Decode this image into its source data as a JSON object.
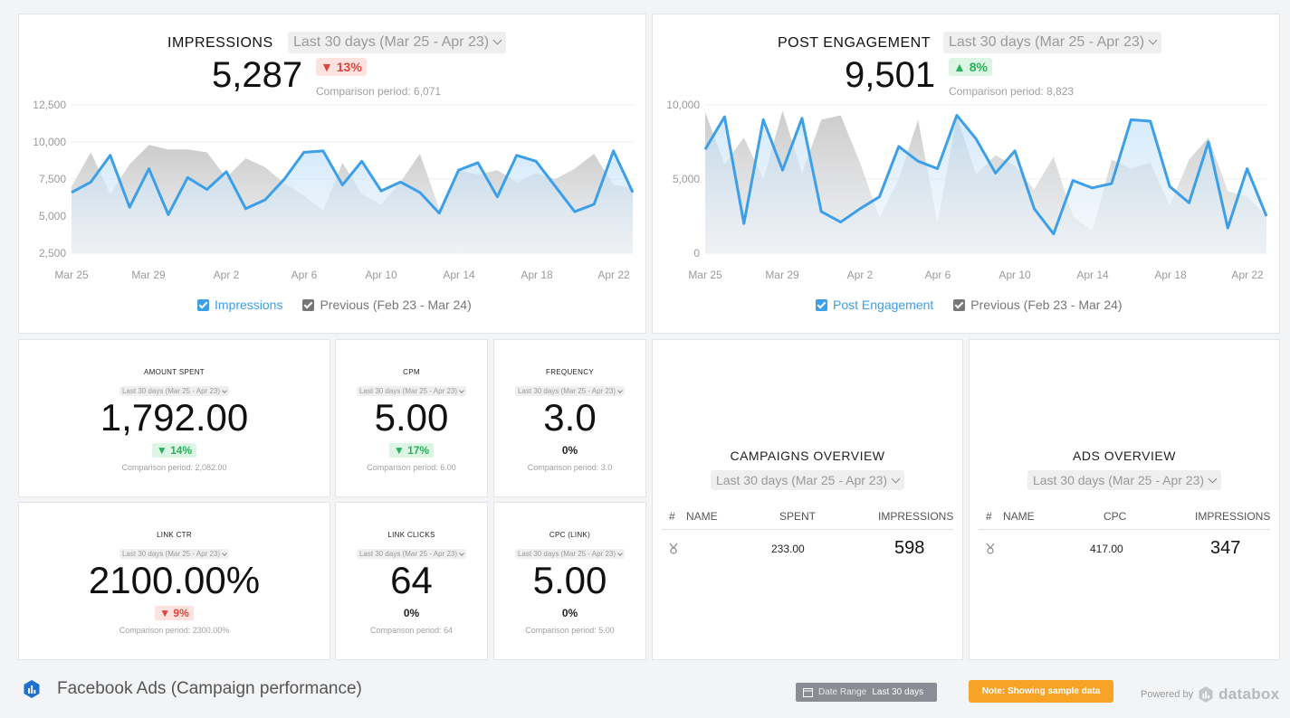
{
  "impressions": {
    "title": "IMPRESSIONS",
    "date_range": "Last 30 days (Mar 25 - Apr 23)",
    "value": "5,287",
    "change": "▼ 13%",
    "comparison": "Comparison period: 6,071",
    "legend_current": "Impressions",
    "legend_previous": "Previous (Feb 23 - Mar 24)"
  },
  "post_engagement": {
    "title": "POST ENGAGEMENT",
    "date_range": "Last 30 days (Mar 25 - Apr 23)",
    "value": "9,501",
    "change": "▲ 8%",
    "comparison": "Comparison period: 8,823",
    "legend_current": "Post Engagement",
    "legend_previous": "Previous (Feb 23 - Mar 24)"
  },
  "chart_data": [
    {
      "type": "area",
      "x_labels": [
        "Mar 25",
        "Mar 29",
        "Apr 2",
        "Apr 6",
        "Apr 10",
        "Apr 14",
        "Apr 18",
        "Apr 22"
      ],
      "y_ticks": [
        "12,500",
        "10,000",
        "7,500",
        "5,000",
        "2,500"
      ],
      "ylim": [
        2500,
        12500
      ],
      "grid": true,
      "legend_placement": "bottom",
      "series": [
        {
          "name": "Impressions",
          "color": "#3c9fe8",
          "values": [
            6600,
            7300,
            9100,
            5600,
            8200,
            5100,
            7600,
            6800,
            8000,
            5500,
            6100,
            7500,
            9300,
            9400,
            7100,
            8700,
            6700,
            7300,
            6600,
            5200,
            8100,
            8600,
            6300,
            9100,
            8700,
            7000,
            5300,
            5800,
            9400,
            6600
          ]
        },
        {
          "name": "Previous (Feb 23 - Mar 24)",
          "color": "#cfcfcf",
          "values": [
            7000,
            9300,
            6500,
            8500,
            9800,
            9500,
            9500,
            9300,
            7600,
            8900,
            8300,
            7200,
            6400,
            5400,
            8600,
            6500,
            5800,
            7300,
            9200,
            5500,
            8100,
            7800,
            8100,
            7300,
            7900,
            7500,
            8200,
            9200,
            7100,
            6900
          ]
        }
      ]
    },
    {
      "type": "area",
      "x_labels": [
        "Mar 25",
        "Mar 29",
        "Apr 2",
        "Apr 6",
        "Apr 10",
        "Apr 14",
        "Apr 18",
        "Apr 22"
      ],
      "y_ticks": [
        "10,000",
        "5,000",
        "0"
      ],
      "ylim": [
        0,
        10000
      ],
      "grid": true,
      "legend_placement": "bottom",
      "series": [
        {
          "name": "Post Engagement",
          "color": "#3c9fe8",
          "values": [
            7000,
            9200,
            2000,
            9000,
            5600,
            9100,
            2800,
            2100,
            3000,
            3800,
            7200,
            6200,
            5700,
            9300,
            7700,
            5400,
            6900,
            3000,
            1300,
            4900,
            4400,
            4700,
            9000,
            8900,
            4500,
            3400,
            7500,
            1700,
            5700,
            2500
          ]
        },
        {
          "name": "Previous (Feb 23 - Mar 24)",
          "color": "#cfcfcf",
          "values": [
            9500,
            6000,
            7800,
            5000,
            9600,
            5400,
            9000,
            9300,
            6100,
            2400,
            5000,
            9000,
            2000,
            9200,
            5300,
            6600,
            5900,
            4300,
            6500,
            2500,
            1500,
            6300,
            5700,
            6100,
            3200,
            6300,
            7800,
            4200,
            3800,
            2500
          ]
        }
      ]
    }
  ],
  "kpis": {
    "amount_spent": {
      "title": "AMOUNT SPENT",
      "date": "Last 30 days (Mar 25 - Apr 23)",
      "value": "1,792.00",
      "change": "▼ 14%",
      "comparison": "Comparison period: 2,082.00"
    },
    "cpm": {
      "title": "CPM",
      "date": "Last 30 days (Mar 25 - Apr 23)",
      "value": "5.00",
      "change": "▼ 17%",
      "comparison": "Comparison period: 6.00"
    },
    "frequency": {
      "title": "FREQUENCY",
      "date": "Last 30 days (Mar 25 - Apr 23)",
      "value": "3.0",
      "change": "0%",
      "comparison": "Comparison period: 3.0"
    },
    "link_ctr": {
      "title": "LINK CTR",
      "date": "Last 30 days (Mar 25 - Apr 23)",
      "value": "2100.00%",
      "change": "▼ 9%",
      "comparison": "Comparison period: 2300.00%"
    },
    "link_clicks": {
      "title": "LINK CLICKS",
      "date": "Last 30 days (Mar 25 - Apr 23)",
      "value": "64",
      "change": "0%",
      "comparison": "Comparison period: 64"
    },
    "cpc_link": {
      "title": "CPC (LINK)",
      "date": "Last 30 days (Mar 25 - Apr 23)",
      "value": "5.00",
      "change": "0%",
      "comparison": "Comparison period: 5.00"
    }
  },
  "campaigns": {
    "title": "CAMPAIGNS OVERVIEW",
    "date_range": "Last 30 days (Mar 25 - Apr 23)",
    "columns": [
      "#",
      "NAME",
      "SPENT",
      "IMPRESSIONS"
    ],
    "row": {
      "spent": "233.00",
      "impressions": "598"
    }
  },
  "ads": {
    "title": "ADS OVERVIEW",
    "date_range": "Last 30 days (Mar 25 - Apr 23)",
    "columns": [
      "#",
      "NAME",
      "CPC",
      "IMPRESSIONS"
    ],
    "row": {
      "cpc": "417.00",
      "impressions": "347"
    }
  },
  "footer": {
    "title": "Facebook Ads (Campaign performance)",
    "date_range_label": "Date Range",
    "date_range_value": "Last 30 days",
    "note": "Note: Showing sample data",
    "powered_by": "Powered by",
    "brand": "databox"
  },
  "colors": {
    "accent": "#3c9fe8",
    "previous": "#cfcfcf",
    "down": "#e0453a",
    "up": "#2bb05c",
    "note": "#f7a326"
  }
}
